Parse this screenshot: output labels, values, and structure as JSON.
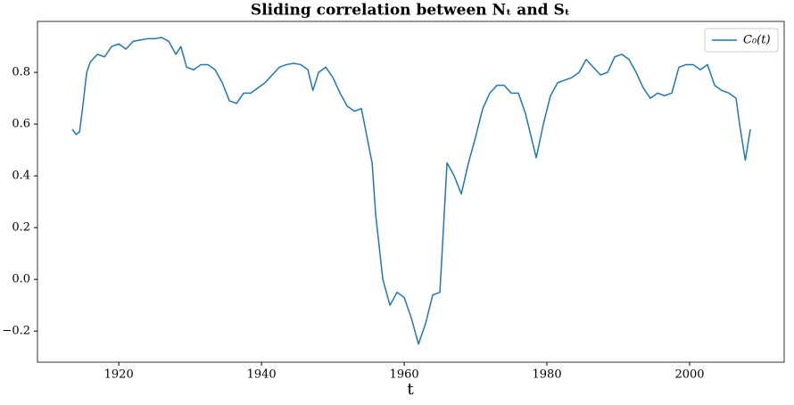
{
  "chart_data": {
    "type": "line",
    "title": "Sliding correlation between Nₜ and Sₜ",
    "x_label": "t",
    "x": [
      1913.5,
      1914,
      1914.5,
      1915,
      1915.5,
      1916,
      1917,
      1918,
      1919,
      1920,
      1921,
      1922,
      1923,
      1924,
      1925,
      1926,
      1927,
      1928,
      1928.7,
      1929.5,
      1930.5,
      1931.5,
      1932.5,
      1933.5,
      1934.5,
      1935.5,
      1936.5,
      1937.5,
      1938.5,
      1939.5,
      1940.5,
      1941.5,
      1942.5,
      1943.5,
      1944.5,
      1945.5,
      1946.5,
      1947.2,
      1948,
      1949,
      1950,
      1951,
      1952,
      1953,
      1954,
      1955,
      1955.5,
      1956,
      1957,
      1958,
      1959,
      1960,
      1961,
      1962,
      1963,
      1964,
      1965,
      1966,
      1967,
      1968,
      1969,
      1970,
      1971,
      1972,
      1973,
      1974,
      1975,
      1976,
      1977,
      1978.5,
      1979.5,
      1980.5,
      1981.5,
      1982.5,
      1983.5,
      1984.5,
      1985.5,
      1986.5,
      1987.5,
      1988.5,
      1989.5,
      1990.5,
      1991.5,
      1992.5,
      1993.5,
      1994.5,
      1995.5,
      1996.5,
      1997.5,
      1998.5,
      1999.5,
      2000.5,
      2001.5,
      2002.5,
      2003.5,
      2004.5,
      2005.5,
      2006.5,
      2007,
      2007.8,
      2008.5
    ],
    "series": [
      {
        "name": "C₀(t)",
        "color": "#1f77b4",
        "values": [
          0.58,
          0.56,
          0.57,
          0.68,
          0.8,
          0.84,
          0.87,
          0.86,
          0.9,
          0.91,
          0.89,
          0.92,
          0.925,
          0.93,
          0.93,
          0.935,
          0.92,
          0.87,
          0.9,
          0.82,
          0.81,
          0.83,
          0.83,
          0.81,
          0.76,
          0.69,
          0.68,
          0.72,
          0.72,
          0.74,
          0.76,
          0.79,
          0.82,
          0.83,
          0.835,
          0.83,
          0.81,
          0.73,
          0.8,
          0.82,
          0.78,
          0.72,
          0.67,
          0.65,
          0.66,
          0.52,
          0.45,
          0.25,
          0.0,
          -0.1,
          -0.05,
          -0.07,
          -0.15,
          -0.25,
          -0.17,
          -0.06,
          -0.05,
          0.45,
          0.4,
          0.33,
          0.45,
          0.55,
          0.66,
          0.72,
          0.75,
          0.75,
          0.72,
          0.72,
          0.64,
          0.47,
          0.6,
          0.71,
          0.76,
          0.77,
          0.78,
          0.8,
          0.85,
          0.82,
          0.79,
          0.8,
          0.86,
          0.87,
          0.85,
          0.8,
          0.74,
          0.7,
          0.72,
          0.71,
          0.72,
          0.82,
          0.83,
          0.83,
          0.81,
          0.83,
          0.75,
          0.73,
          0.72,
          0.7,
          0.6,
          0.46,
          0.58
        ]
      }
    ],
    "xlim": [
      1908.6,
      2013.25
    ],
    "ylim": [
      -0.32,
      0.997
    ],
    "xticks": [
      1920,
      1940,
      1960,
      1980,
      2000
    ],
    "yticks": [
      {
        "value": -0.2,
        "label": "−0.2"
      },
      {
        "value": 0,
        "label": "0.0"
      },
      0.2,
      0.4,
      0.6,
      0.8
    ],
    "grid": false,
    "legend": "upper right"
  }
}
